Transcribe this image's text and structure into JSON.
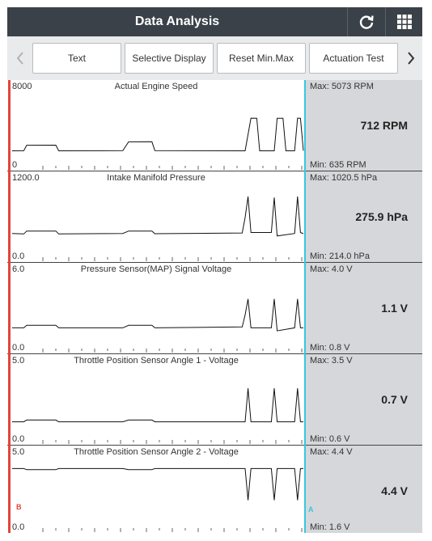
{
  "header": {
    "title": "Data Analysis",
    "refresh_icon": "refresh-icon",
    "grid_icon": "grid-menu-icon"
  },
  "toolbar": {
    "buttons": [
      "Text",
      "Selective Display",
      "Reset Min.Max",
      "Actuation Test"
    ],
    "prev_icon": "chevron-left-icon",
    "next_icon": "chevron-right-icon"
  },
  "cursors": {
    "b_label": "B",
    "a_label": "A",
    "b_color": "#e0453c",
    "a_color": "#37c6e0"
  },
  "graphs": [
    {
      "name": "Actual Engine Speed",
      "axis_max": "8000",
      "axis_min": "0",
      "max": "Max: 5073 RPM",
      "current": "712 RPM",
      "min": "Min: 635 RPM",
      "scale": [
        0,
        8000
      ],
      "trace": [
        [
          0,
          700
        ],
        [
          4,
          710
        ],
        [
          5,
          1450
        ],
        [
          15,
          1460
        ],
        [
          16,
          700
        ],
        [
          38,
          720
        ],
        [
          40,
          1900
        ],
        [
          48,
          1910
        ],
        [
          49,
          720
        ],
        [
          80,
          700
        ],
        [
          82,
          5070
        ],
        [
          84,
          5060
        ],
        [
          85,
          700
        ],
        [
          90,
          700
        ],
        [
          91,
          5060
        ],
        [
          93,
          5050
        ],
        [
          94,
          700
        ],
        [
          97,
          700
        ],
        [
          98,
          5073
        ],
        [
          99,
          5060
        ],
        [
          100,
          712
        ]
      ]
    },
    {
      "name": "Intake Manifold Pressure",
      "axis_max": "1200.0",
      "axis_min": "0.0",
      "max": "Max: 1020.5 hPa",
      "current": "275.9 hPa",
      "min": "Min: 214.0 hPa",
      "scale": [
        0,
        1200
      ],
      "trace": [
        [
          0,
          280
        ],
        [
          4,
          270
        ],
        [
          5,
          330
        ],
        [
          15,
          330
        ],
        [
          16,
          270
        ],
        [
          38,
          280
        ],
        [
          40,
          330
        ],
        [
          48,
          330
        ],
        [
          49,
          275
        ],
        [
          79,
          290
        ],
        [
          80,
          600
        ],
        [
          81,
          1020
        ],
        [
          82,
          300
        ],
        [
          89,
          300
        ],
        [
          90,
          1000
        ],
        [
          91,
          230
        ],
        [
          97,
          280
        ],
        [
          98,
          1020
        ],
        [
          99,
          300
        ],
        [
          100,
          276
        ]
      ]
    },
    {
      "name": "Pressure Sensor(MAP) Signal Voltage",
      "axis_max": "6.0",
      "axis_min": "0.0",
      "max": "Max: 4.0 V",
      "current": "1.1 V",
      "min": "Min: 0.8 V",
      "scale": [
        0,
        6
      ],
      "trace": [
        [
          0,
          1.1
        ],
        [
          4,
          1.1
        ],
        [
          5,
          1.35
        ],
        [
          15,
          1.35
        ],
        [
          16,
          1.1
        ],
        [
          38,
          1.1
        ],
        [
          40,
          1.35
        ],
        [
          48,
          1.35
        ],
        [
          49,
          1.1
        ],
        [
          79,
          1.2
        ],
        [
          80,
          2.4
        ],
        [
          81,
          4.0
        ],
        [
          82,
          1.1
        ],
        [
          89,
          1.1
        ],
        [
          90,
          4.0
        ],
        [
          91,
          0.8
        ],
        [
          97,
          1.1
        ],
        [
          98,
          4.0
        ],
        [
          99,
          1.1
        ],
        [
          100,
          1.1
        ]
      ]
    },
    {
      "name": "Throttle Position Sensor Angle 1 - Voltage",
      "axis_max": "5.0",
      "axis_min": "0.0",
      "max": "Max: 3.5 V",
      "current": "0.7 V",
      "min": "Min: 0.6 V",
      "scale": [
        0,
        5
      ],
      "trace": [
        [
          0,
          0.7
        ],
        [
          4,
          0.7
        ],
        [
          5,
          0.85
        ],
        [
          15,
          0.85
        ],
        [
          16,
          0.7
        ],
        [
          38,
          0.7
        ],
        [
          40,
          0.85
        ],
        [
          48,
          0.85
        ],
        [
          49,
          0.7
        ],
        [
          80,
          0.7
        ],
        [
          81,
          3.5
        ],
        [
          82,
          0.7
        ],
        [
          89,
          0.7
        ],
        [
          90,
          3.5
        ],
        [
          91,
          0.7
        ],
        [
          97,
          0.7
        ],
        [
          98,
          3.5
        ],
        [
          99,
          0.7
        ],
        [
          100,
          0.7
        ]
      ]
    },
    {
      "name": "Throttle Position Sensor Angle 2 - Voltage",
      "axis_max": "5.0",
      "axis_min": "0.0",
      "max": "Max: 4.4 V",
      "current": "4.4 V",
      "min": "Min: 1.6 V",
      "scale": [
        0,
        5
      ],
      "trace": [
        [
          0,
          4.4
        ],
        [
          4,
          4.4
        ],
        [
          5,
          4.3
        ],
        [
          15,
          4.3
        ],
        [
          16,
          4.4
        ],
        [
          38,
          4.4
        ],
        [
          40,
          4.3
        ],
        [
          48,
          4.3
        ],
        [
          49,
          4.4
        ],
        [
          80,
          4.4
        ],
        [
          81,
          1.6
        ],
        [
          82,
          4.4
        ],
        [
          89,
          4.4
        ],
        [
          90,
          1.6
        ],
        [
          91,
          4.4
        ],
        [
          97,
          4.4
        ],
        [
          98,
          1.6
        ],
        [
          99,
          4.4
        ],
        [
          100,
          4.4
        ]
      ]
    }
  ]
}
